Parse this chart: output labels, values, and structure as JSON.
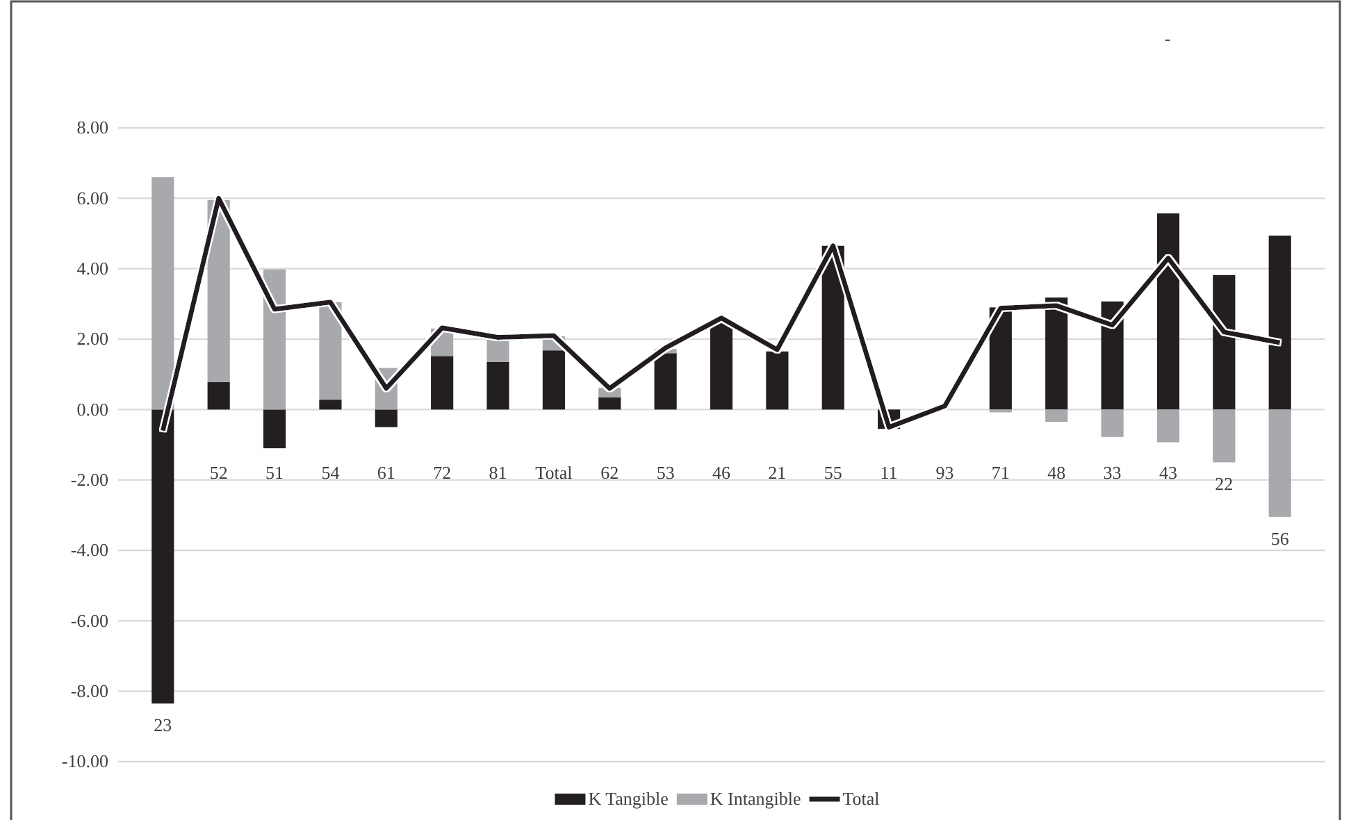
{
  "chart_data": {
    "type": "bar",
    "stacked": true,
    "categories": [
      "23",
      "52",
      "51",
      "54",
      "61",
      "72",
      "81",
      "Total",
      "62",
      "53",
      "46",
      "21",
      "55",
      "11",
      "93",
      "71",
      "48",
      "33",
      "43",
      "22",
      "56"
    ],
    "series": [
      {
        "name": "K Tangible",
        "color": "#231f20",
        "values": [
          -8.35,
          0.78,
          -1.1,
          0.28,
          -0.5,
          1.52,
          1.35,
          1.68,
          0.35,
          1.6,
          2.5,
          1.65,
          4.65,
          -0.55,
          null,
          2.9,
          3.18,
          3.07,
          5.57,
          3.82,
          4.94
        ]
      },
      {
        "name": "K Intangible",
        "color": "#a7a9ac",
        "values": [
          6.6,
          5.17,
          3.98,
          2.77,
          1.18,
          0.78,
          0.67,
          0.4,
          0.27,
          0.12,
          0,
          0,
          0,
          0,
          null,
          -0.08,
          -0.35,
          -0.78,
          -0.93,
          -1.5,
          -3.05
        ]
      },
      {
        "name": "Total",
        "type": "line",
        "color": "#231f20",
        "values": [
          -0.6,
          6.0,
          2.85,
          3.05,
          0.6,
          2.32,
          2.05,
          2.1,
          0.6,
          1.75,
          2.6,
          1.7,
          4.65,
          -0.5,
          0.1,
          2.88,
          2.95,
          2.4,
          4.3,
          2.2,
          1.9
        ]
      }
    ],
    "ylim": [
      -10,
      8
    ],
    "yticks": [
      {
        "value": -10,
        "label": "-10.00"
      },
      {
        "value": -8,
        "label": "-8.00"
      },
      {
        "value": -6,
        "label": "-6.00"
      },
      {
        "value": -4,
        "label": "-4.00"
      },
      {
        "value": -2,
        "label": "-2.00"
      },
      {
        "value": 0,
        "label": "0.00"
      },
      {
        "value": 2,
        "label": "2.00"
      },
      {
        "value": 4,
        "label": "4.00"
      },
      {
        "value": 6,
        "label": "6.00"
      },
      {
        "value": 8,
        "label": "8.00"
      }
    ],
    "grid": "y",
    "legend": "bottom",
    "annotations": [
      "-"
    ]
  }
}
